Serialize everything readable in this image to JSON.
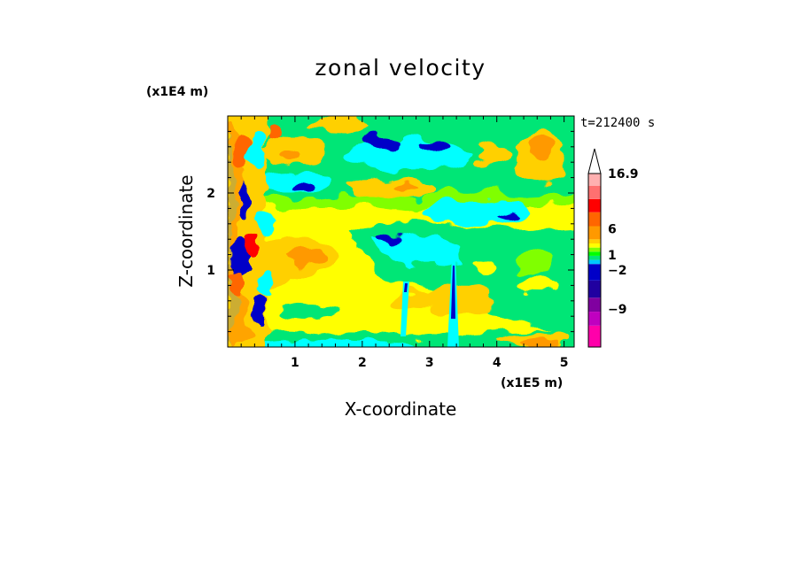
{
  "chart_data": {
    "type": "heatmap",
    "title": "zonal velocity",
    "xlabel": "X-coordinate",
    "ylabel": "Z-coordinate",
    "x_scale_label": "(x1E5 m)",
    "y_scale_label": "(x1E4 m)",
    "time_label": "t=212400 s",
    "xlim": [
      0,
      5.15
    ],
    "ylim": [
      0,
      3.0
    ],
    "x_ticks": [
      "1",
      "2",
      "3",
      "4",
      "5"
    ],
    "x_tick_values": [
      1,
      2,
      3,
      4,
      5
    ],
    "y_ticks": [
      "1",
      "2"
    ],
    "y_tick_values": [
      1,
      2
    ],
    "colorbar": {
      "labels": [
        {
          "text": "16.9",
          "value": 16.9
        },
        {
          "text": "6",
          "value": 6
        },
        {
          "text": "1",
          "value": 1
        },
        {
          "text": "−2",
          "value": -2
        },
        {
          "text": "−9",
          "value": -9
        }
      ],
      "colors": [
        "#ff00aa",
        "#c000c0",
        "#8000a0",
        "#2000a0",
        "#0000c8",
        "#00c8ff",
        "#00e676",
        "#00ff00",
        "#80ff00",
        "#ffff00",
        "#ffd000",
        "#ff9900",
        "#ff6600",
        "#ff0000",
        "#ff7070",
        "#ffb0b0"
      ],
      "extend": "max"
    },
    "colors": {
      "magenta": "#ff00aa",
      "purple": "#8000a0",
      "navy": "#0000c8",
      "cyan": "#00ffff",
      "green": "#00ff55",
      "yellow": "#ffff00",
      "orange": "#ff9900",
      "red": "#ff0000",
      "pink": "#ffb0b0"
    }
  }
}
